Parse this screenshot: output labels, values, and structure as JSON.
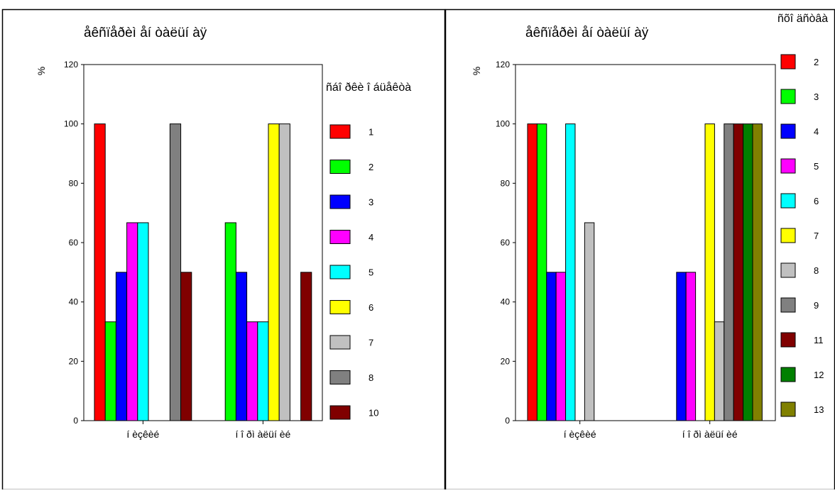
{
  "chart_data": [
    {
      "type": "bar",
      "title": "åêñïåðèì åí òàëüí àÿ",
      "ylabel": "%",
      "ylim": [
        0,
        120
      ],
      "yticks": [
        0,
        20,
        40,
        60,
        80,
        100,
        120
      ],
      "categories": [
        "í èçêèé",
        "í î ðì àëüí èé"
      ],
      "legend_title": "ñáî ðêè î áüåêòà",
      "legend_position": "right",
      "series": [
        {
          "name": "1",
          "color": "#ff0000",
          "values": [
            100,
            null
          ]
        },
        {
          "name": "2",
          "color": "#00ff00",
          "values": [
            33.3,
            66.7
          ]
        },
        {
          "name": "3",
          "color": "#0000ff",
          "values": [
            50,
            50
          ]
        },
        {
          "name": "4",
          "color": "#ff00ff",
          "values": [
            66.7,
            33.3
          ]
        },
        {
          "name": "5",
          "color": "#00ffff",
          "values": [
            66.7,
            33.3
          ]
        },
        {
          "name": "6",
          "color": "#ffff00",
          "values": [
            null,
            100
          ]
        },
        {
          "name": "7",
          "color": "#c0c0c0",
          "values": [
            null,
            100
          ]
        },
        {
          "name": "8",
          "color": "#808080",
          "values": [
            100,
            null
          ]
        },
        {
          "name": "10",
          "color": "#800000",
          "values": [
            50,
            50
          ]
        }
      ]
    },
    {
      "type": "bar",
      "title": "åêñïåðèì åí òàëüí àÿ",
      "ylabel": "%",
      "ylim": [
        0,
        120
      ],
      "yticks": [
        0,
        20,
        40,
        60,
        80,
        100,
        120
      ],
      "categories": [
        "í èçêèé",
        "í î ðì àëüí èé"
      ],
      "legend_title": "ñõî äñòâà",
      "legend_position": "right",
      "series": [
        {
          "name": "2",
          "color": "#ff0000",
          "values": [
            100,
            null
          ]
        },
        {
          "name": "3",
          "color": "#00ff00",
          "values": [
            100,
            null
          ]
        },
        {
          "name": "4",
          "color": "#0000ff",
          "values": [
            50,
            50
          ]
        },
        {
          "name": "5",
          "color": "#ff00ff",
          "values": [
            50,
            50
          ]
        },
        {
          "name": "6",
          "color": "#00ffff",
          "values": [
            100,
            null
          ]
        },
        {
          "name": "7",
          "color": "#ffff00",
          "values": [
            null,
            100
          ]
        },
        {
          "name": "8",
          "color": "#c0c0c0",
          "values": [
            66.7,
            33.3
          ]
        },
        {
          "name": "9",
          "color": "#808080",
          "values": [
            null,
            100
          ]
        },
        {
          "name": "11",
          "color": "#800000",
          "values": [
            null,
            100
          ]
        },
        {
          "name": "12",
          "color": "#008000",
          "values": [
            null,
            100
          ]
        },
        {
          "name": "13",
          "color": "#808000",
          "values": [
            null,
            100
          ]
        }
      ]
    }
  ]
}
